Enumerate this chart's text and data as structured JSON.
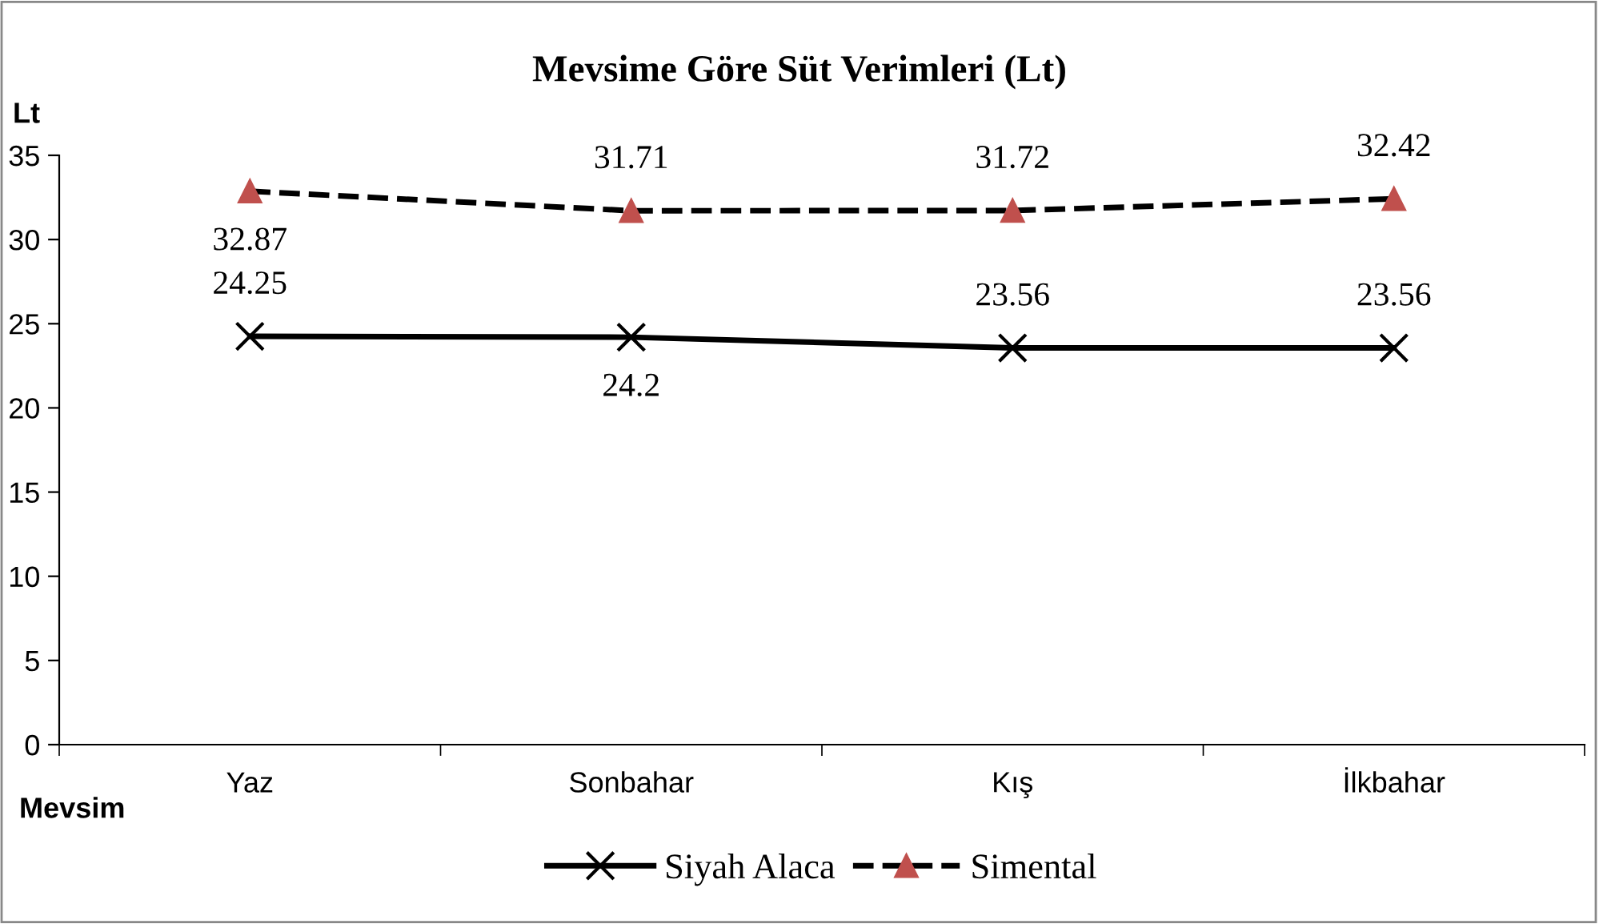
{
  "chart_data": {
    "type": "line",
    "title": "Mevsime Göre Süt Verimleri (Lt)",
    "ylabel": "Lt",
    "xlabel": "Mevsim",
    "categories": [
      "Yaz",
      "Sonbahar",
      "Kış",
      "İlkbahar"
    ],
    "series": [
      {
        "name": "Siyah Alaca",
        "color": "#000000",
        "values": [
          24.25,
          24.2,
          23.56,
          23.56
        ],
        "marker": "cross",
        "line_style": "solid"
      },
      {
        "name": "Simental",
        "color": "#c0504d",
        "values": [
          32.87,
          31.71,
          31.72,
          32.42
        ],
        "marker": "triangle",
        "line_style": "dashed"
      }
    ],
    "ylim": [
      0,
      35
    ],
    "yticks": [
      0,
      5,
      10,
      15,
      20,
      25,
      30,
      35
    ],
    "grid": false,
    "legend": "bottom",
    "data_labels": true
  }
}
